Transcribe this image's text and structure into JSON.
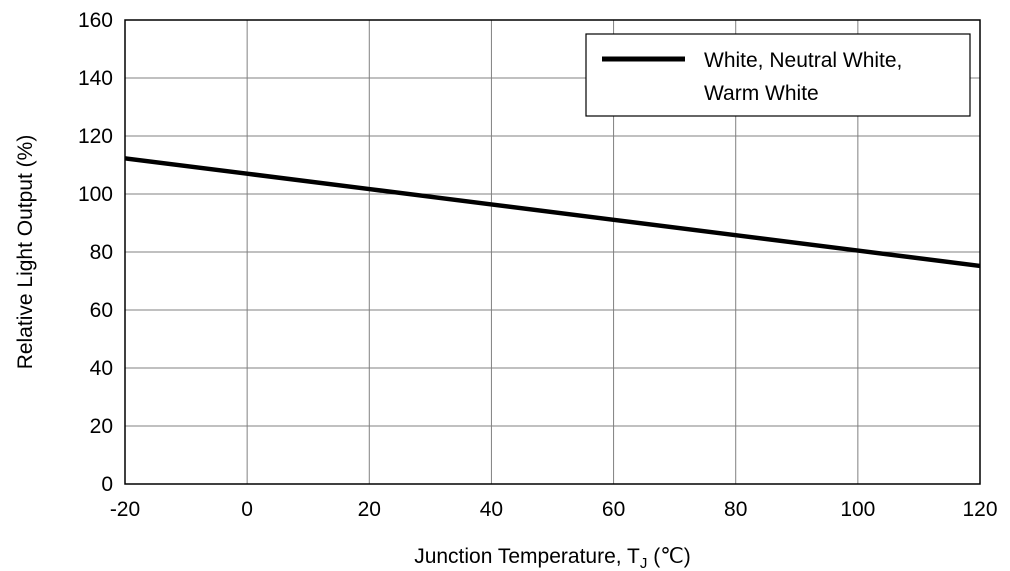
{
  "chart_data": {
    "type": "line",
    "xlabel": "Junction Temperature, T",
    "xlabel_sub": "J",
    "xlabel_unit": " (℃)",
    "ylabel": "Relative Light Output (%)",
    "xlim": [
      -20,
      120
    ],
    "ylim": [
      0,
      160
    ],
    "x_ticks": [
      -20,
      0,
      20,
      40,
      60,
      80,
      100,
      120
    ],
    "y_ticks": [
      0,
      20,
      40,
      60,
      80,
      100,
      120,
      140,
      160
    ],
    "grid": true,
    "legend_position": "top-right",
    "series": [
      {
        "name_lines": [
          "White, Neutral White,",
          "Warm White"
        ],
        "x": [
          -20,
          0,
          20,
          40,
          60,
          80,
          100,
          120
        ],
        "y": [
          112.3,
          107.0,
          101.7,
          96.4,
          91.1,
          85.8,
          80.5,
          75.2
        ]
      }
    ],
    "colors": {
      "line": "#000000",
      "grid": "#808080",
      "axis": "#000000"
    }
  }
}
